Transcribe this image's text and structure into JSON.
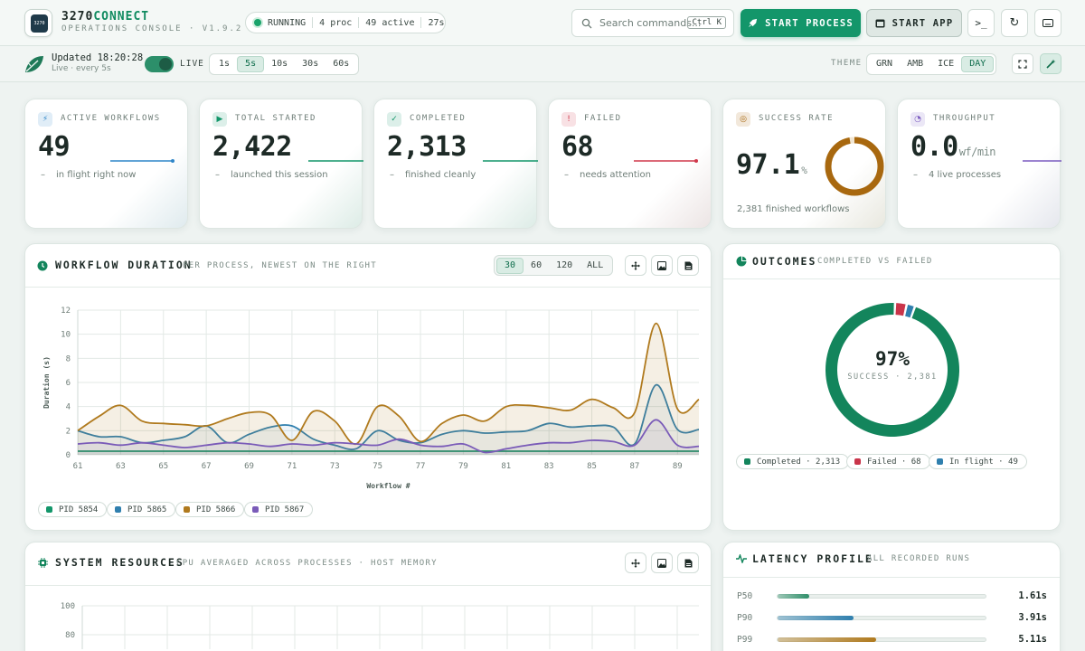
{
  "header": {
    "brand_prefix": "3270",
    "brand_accent": "CONNECT",
    "subtitle": "OPERATIONS CONSOLE · V1.9.2",
    "logo_text": "3270",
    "status": {
      "state": "RUNNING",
      "procs": "4 proc",
      "active": "49 active",
      "uptime": "27s"
    },
    "search_placeholder": "Search commands...",
    "search_shortcut": "Ctrl K",
    "start_process_label": "START PROCESS",
    "start_app_label": "START APP",
    "icons": [
      "terminal-icon",
      "refresh-icon",
      "keyboard-icon"
    ]
  },
  "toolbar": {
    "updated": "Updated 18:20:28",
    "updated_sub": "Live · every 5s",
    "live_label": "LIVE",
    "live_on": true,
    "intervals": [
      "1s",
      "5s",
      "10s",
      "30s",
      "60s"
    ],
    "interval_selected": "5s",
    "theme_label": "THEME",
    "themes": [
      "GRN",
      "AMB",
      "ICE",
      "DAY"
    ],
    "theme_selected": "DAY"
  },
  "kpis": [
    {
      "label": "ACTIVE WORKFLOWS",
      "value": "49",
      "sub": "in flight right now",
      "color": "#2f86c8",
      "icon": "bolt-icon"
    },
    {
      "label": "TOTAL STARTED",
      "value": "2,422",
      "sub": "launched this session",
      "color": "#13966a",
      "icon": "play-icon"
    },
    {
      "label": "COMPLETED",
      "value": "2,313",
      "sub": "finished cleanly",
      "color": "#13966a",
      "icon": "check-icon"
    },
    {
      "label": "FAILED",
      "value": "68",
      "sub": "needs attention",
      "color": "#d0394b",
      "icon": "warning-icon"
    },
    {
      "label": "SUCCESS RATE",
      "value": "97.1",
      "unit": "%",
      "sub": "2,381 finished workflows",
      "color": "#a8680f",
      "icon": "target-icon",
      "ring_fraction": 0.971
    },
    {
      "label": "THROUGHPUT",
      "value": "0.0",
      "unit": "wf/min",
      "sub": "4 live processes",
      "color": "#7b5cc0",
      "icon": "gauge-icon"
    }
  ],
  "duration_panel": {
    "title": "WORKFLOW DURATION",
    "subtitle": "PER PROCESS, NEWEST ON THE RIGHT",
    "ranges": [
      "30",
      "60",
      "120",
      "ALL"
    ],
    "range_selected": "30",
    "chips": [
      "PID 5854",
      "PID 5865",
      "PID 5866",
      "PID 5867"
    ]
  },
  "chart_data": {
    "type": "line",
    "xlabel": "Workflow #",
    "ylabel": "Duration (s)",
    "ylim": [
      0,
      12
    ],
    "yticks": [
      0,
      2,
      4,
      6,
      8,
      10,
      12
    ],
    "xlim": [
      61,
      90
    ],
    "xticks": [
      61,
      63,
      65,
      67,
      69,
      71,
      73,
      75,
      77,
      79,
      81,
      83,
      85,
      87,
      89
    ],
    "x": [
      61,
      62,
      63,
      64,
      65,
      66,
      67,
      68,
      69,
      70,
      71,
      72,
      73,
      74,
      75,
      76,
      77,
      78,
      79,
      80,
      81,
      82,
      83,
      84,
      85,
      86,
      87,
      88,
      89,
      90
    ],
    "grid": true,
    "legend": "bottom-left",
    "series": [
      {
        "name": "PID 5854",
        "color": "#13966a",
        "values": [
          0.3,
          0.3,
          0.3,
          0.3,
          0.3,
          0.3,
          0.3,
          0.3,
          0.3,
          0.3,
          0.3,
          0.3,
          0.3,
          0.3,
          0.3,
          0.3,
          0.3,
          0.3,
          0.3,
          0.3,
          0.3,
          0.3,
          0.3,
          0.3,
          0.3,
          0.3,
          0.3,
          0.3,
          0.3,
          0.3
        ]
      },
      {
        "name": "PID 5865",
        "color": "#2f7fae",
        "values": [
          2.0,
          1.5,
          1.5,
          1.0,
          1.2,
          1.5,
          2.4,
          1.0,
          1.7,
          2.3,
          2.4,
          1.3,
          0.8,
          0.5,
          2.0,
          1.2,
          1.0,
          1.7,
          2.0,
          1.8,
          1.9,
          2.0,
          2.6,
          2.3,
          2.4,
          2.3,
          0.9,
          5.8,
          2.1,
          2.1
        ]
      },
      {
        "name": "PID 5866",
        "color": "#b07a1e",
        "values": [
          2.0,
          3.2,
          4.1,
          2.8,
          2.6,
          2.5,
          2.4,
          3.0,
          3.5,
          3.3,
          1.2,
          3.6,
          2.8,
          0.9,
          4.0,
          3.2,
          1.1,
          2.6,
          3.3,
          2.8,
          4.0,
          4.1,
          3.9,
          3.7,
          4.6,
          3.9,
          3.5,
          10.9,
          3.8,
          4.6
        ]
      },
      {
        "name": "PID 5867",
        "color": "#7a5bb8",
        "values": [
          0.9,
          1.0,
          0.8,
          1.0,
          0.8,
          0.6,
          0.8,
          1.0,
          0.9,
          0.7,
          0.9,
          0.8,
          1.0,
          0.9,
          0.8,
          1.3,
          0.8,
          0.7,
          0.9,
          0.2,
          0.5,
          0.8,
          1.0,
          1.0,
          1.2,
          1.1,
          0.8,
          2.9,
          0.8,
          0.7
        ]
      }
    ]
  },
  "outcomes_panel": {
    "title": "OUTCOMES",
    "subtitle": "COMPLETED VS FAILED",
    "center_value": "97%",
    "center_label": "SUCCESS · 2,381",
    "slices": [
      {
        "name": "Completed",
        "value": 2313,
        "label": "Completed · 2,313",
        "color": "#13855c"
      },
      {
        "name": "Failed",
        "value": 68,
        "label": "Failed · 68",
        "color": "#c9354a"
      },
      {
        "name": "In flight",
        "value": 49,
        "label": "In flight · 49",
        "color": "#2f7fae"
      }
    ]
  },
  "resources_panel": {
    "title": "SYSTEM RESOURCES",
    "subtitle": "CPU AVERAGED ACROSS PROCESSES · HOST MEMORY",
    "yticks_visible": [
      "100",
      "80"
    ]
  },
  "latency_panel": {
    "title": "LATENCY PROFILE",
    "subtitle": "ALL RECORDED RUNS",
    "rows": [
      {
        "label": "P50",
        "value": "1.61s",
        "fraction": 0.15,
        "color": "#2f8f6a"
      },
      {
        "label": "P90",
        "value": "3.91s",
        "fraction": 0.36,
        "color": "#2f7fae"
      },
      {
        "label": "P99",
        "value": "5.11s",
        "fraction": 0.47,
        "color": "#b07a1e"
      }
    ]
  }
}
